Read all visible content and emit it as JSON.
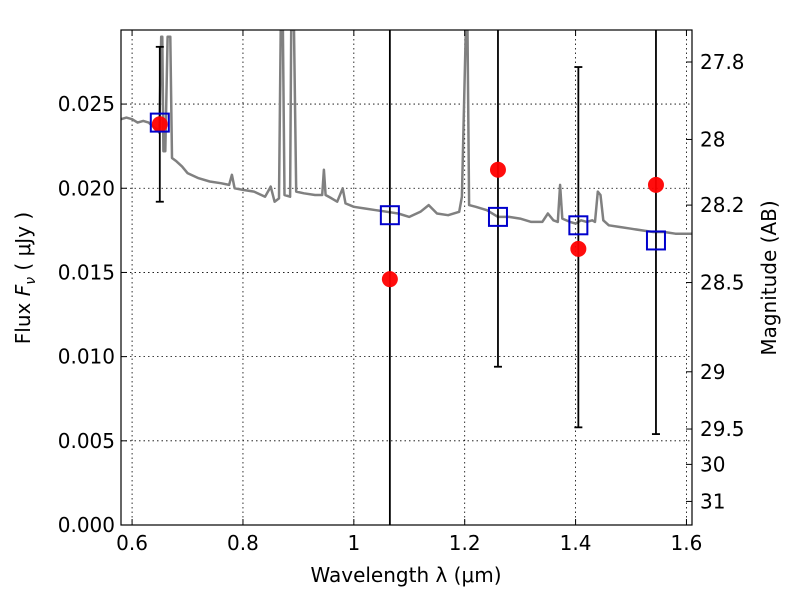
{
  "chart_data": {
    "type": "scatter",
    "title": "",
    "xlabel": "Wavelength  λ (μm)",
    "ylabel": "Flux  F_ν  ( μJy )",
    "y2label": "Magnitude (AB)",
    "xlim": [
      0.58,
      1.61
    ],
    "ylim": [
      0.0,
      0.0294
    ],
    "grid": true,
    "grid_style": "dotted",
    "x_ticks": [
      0.6,
      0.8,
      1.0,
      1.2,
      1.4,
      1.6
    ],
    "x_tick_labels": [
      "0.6",
      "0.8",
      "1",
      "1.2",
      "1.4",
      "1.6"
    ],
    "y_ticks": [
      0.0,
      0.005,
      0.01,
      0.015,
      0.02,
      0.025
    ],
    "y_tick_labels": [
      "0.000",
      "0.005",
      "0.010",
      "0.015",
      "0.020",
      "0.025"
    ],
    "y2_ticks": [
      {
        "label": "27.8",
        "flux": 0.0275
      },
      {
        "label": "28",
        "flux": 0.0229
      },
      {
        "label": "28.2",
        "flux": 0.019
      },
      {
        "label": "28.5",
        "flux": 0.0144
      },
      {
        "label": "29",
        "flux": 0.0091
      },
      {
        "label": "29.5",
        "flux": 0.0057
      },
      {
        "label": "30",
        "flux": 0.0036
      },
      {
        "label": "31",
        "flux": 0.0014
      }
    ],
    "colors": {
      "model": "#808080",
      "observed": "#ff0000",
      "model_photometry": "#0000cc",
      "error_bar": "#000000"
    },
    "series": [
      {
        "kind": "line",
        "style": "model-spectrum",
        "points": [
          [
            0.58,
            0.0241
          ],
          [
            0.59,
            0.0242
          ],
          [
            0.6,
            0.0241
          ],
          [
            0.61,
            0.0239
          ],
          [
            0.62,
            0.024
          ],
          [
            0.63,
            0.0239
          ],
          [
            0.64,
            0.0236
          ],
          [
            0.645,
            0.0235
          ],
          [
            0.649,
            0.0233
          ],
          [
            0.6525,
            0.029
          ],
          [
            0.6545,
            0.029
          ],
          [
            0.6565,
            0.0222
          ],
          [
            0.66,
            0.0222
          ],
          [
            0.664,
            0.029
          ],
          [
            0.669,
            0.029
          ],
          [
            0.672,
            0.0218
          ],
          [
            0.68,
            0.0216
          ],
          [
            0.69,
            0.0213
          ],
          [
            0.7,
            0.0209
          ],
          [
            0.72,
            0.0206
          ],
          [
            0.74,
            0.0204
          ],
          [
            0.76,
            0.0203
          ],
          [
            0.775,
            0.0202
          ],
          [
            0.78,
            0.0208
          ],
          [
            0.785,
            0.02
          ],
          [
            0.8,
            0.0199
          ],
          [
            0.82,
            0.0198
          ],
          [
            0.84,
            0.0195
          ],
          [
            0.85,
            0.0201
          ],
          [
            0.857,
            0.0192
          ],
          [
            0.865,
            0.0194
          ],
          [
            0.868,
            0.0294
          ],
          [
            0.872,
            0.0294
          ],
          [
            0.875,
            0.0196
          ],
          [
            0.885,
            0.0195
          ],
          [
            0.887,
            0.0294
          ],
          [
            0.892,
            0.0294
          ],
          [
            0.896,
            0.0198
          ],
          [
            0.91,
            0.0197
          ],
          [
            0.93,
            0.0196
          ],
          [
            0.943,
            0.0196
          ],
          [
            0.946,
            0.0211
          ],
          [
            0.949,
            0.0196
          ],
          [
            0.96,
            0.0194
          ],
          [
            0.97,
            0.0192
          ],
          [
            0.98,
            0.02
          ],
          [
            0.985,
            0.0191
          ],
          [
            1.0,
            0.0189
          ],
          [
            1.02,
            0.0188
          ],
          [
            1.04,
            0.0187
          ],
          [
            1.06,
            0.0186
          ],
          [
            1.08,
            0.0185
          ],
          [
            1.1,
            0.0183
          ],
          [
            1.12,
            0.0186
          ],
          [
            1.135,
            0.019
          ],
          [
            1.15,
            0.0185
          ],
          [
            1.17,
            0.0184
          ],
          [
            1.19,
            0.0186
          ],
          [
            1.195,
            0.0195
          ],
          [
            1.202,
            0.0294
          ],
          [
            1.205,
            0.0294
          ],
          [
            1.208,
            0.019
          ],
          [
            1.22,
            0.0189
          ],
          [
            1.24,
            0.0187
          ],
          [
            1.26,
            0.0183
          ],
          [
            1.28,
            0.0183
          ],
          [
            1.3,
            0.0182
          ],
          [
            1.32,
            0.018
          ],
          [
            1.34,
            0.018
          ],
          [
            1.35,
            0.0185
          ],
          [
            1.36,
            0.0181
          ],
          [
            1.368,
            0.018
          ],
          [
            1.372,
            0.0202
          ],
          [
            1.376,
            0.0182
          ],
          [
            1.39,
            0.018
          ],
          [
            1.4,
            0.0179
          ],
          [
            1.41,
            0.0181
          ],
          [
            1.42,
            0.018
          ],
          [
            1.43,
            0.0181
          ],
          [
            1.435,
            0.018
          ],
          [
            1.44,
            0.0198
          ],
          [
            1.445,
            0.0196
          ],
          [
            1.45,
            0.0181
          ],
          [
            1.46,
            0.0178
          ],
          [
            1.48,
            0.0177
          ],
          [
            1.5,
            0.0176
          ],
          [
            1.52,
            0.0175
          ],
          [
            1.54,
            0.0174
          ],
          [
            1.56,
            0.0174
          ],
          [
            1.58,
            0.0173
          ],
          [
            1.6,
            0.0173
          ],
          [
            1.61,
            0.0173
          ]
        ]
      },
      {
        "kind": "points",
        "style": "observed",
        "points": [
          {
            "x": 0.65,
            "y": 0.0238,
            "err_low": 0.0192,
            "err_high": 0.0284
          },
          {
            "x": 1.065,
            "y": 0.0146,
            "err_low": 0.0,
            "err_high": 0.0294
          },
          {
            "x": 1.26,
            "y": 0.0211,
            "err_low": 0.0094,
            "err_high": 0.0294
          },
          {
            "x": 1.405,
            "y": 0.0164,
            "err_low": 0.0058,
            "err_high": 0.0272
          },
          {
            "x": 1.545,
            "y": 0.0202,
            "err_low": 0.0054,
            "err_high": 0.0294
          }
        ]
      },
      {
        "kind": "points",
        "style": "model-photometry",
        "points": [
          {
            "x": 0.65,
            "y": 0.0239
          },
          {
            "x": 1.065,
            "y": 0.0184
          },
          {
            "x": 1.26,
            "y": 0.0183
          },
          {
            "x": 1.405,
            "y": 0.0178
          },
          {
            "x": 1.545,
            "y": 0.0169
          }
        ]
      }
    ]
  }
}
